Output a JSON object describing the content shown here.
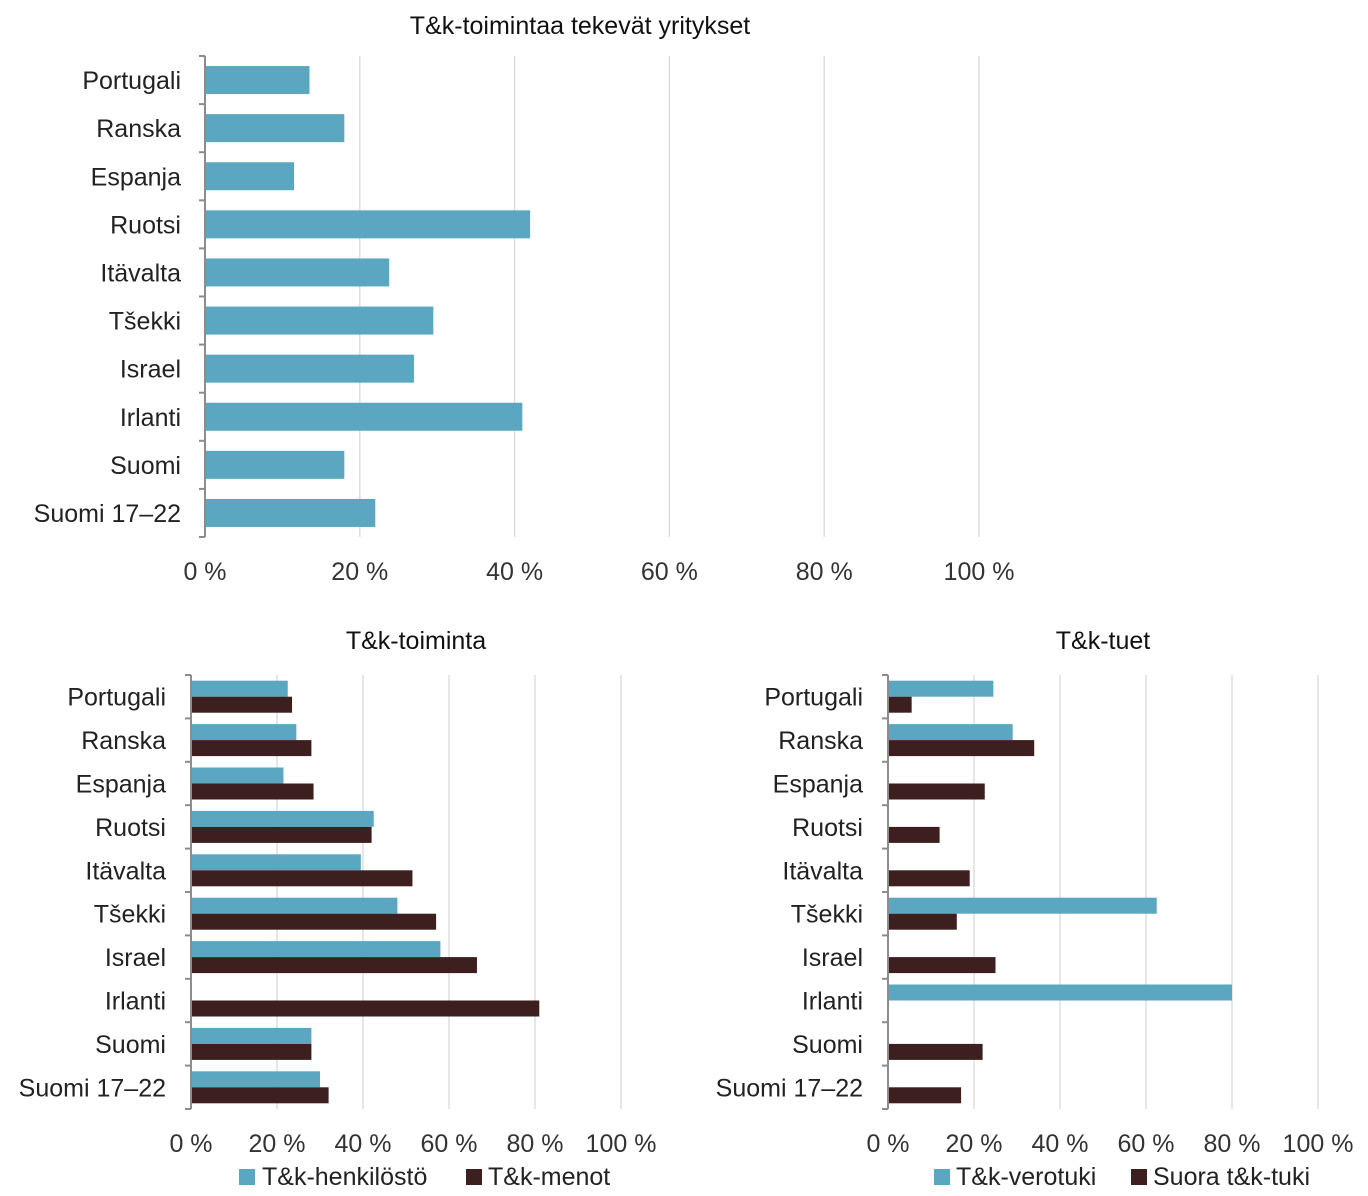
{
  "chart_data": [
    {
      "type": "bar",
      "orientation": "horizontal",
      "title": "T&k-toimintaa tekevät yritykset",
      "categories": [
        "Portugali",
        "Ranska",
        "Espanja",
        "Ruotsi",
        "Itävalta",
        "Tšekki",
        "Israel",
        "Irlanti",
        "Suomi",
        "Suomi 17–22"
      ],
      "series": [
        {
          "values": [
            13.5,
            18,
            11.5,
            42,
            23.8,
            29.5,
            27,
            41,
            18,
            22
          ],
          "color": "#5ba7c2"
        }
      ],
      "xlim": [
        0,
        100
      ],
      "x_ticks": [
        "0 %",
        "20 %",
        "40 %",
        "60 %",
        "80 %",
        "100 %"
      ],
      "grid": true,
      "legend": "none"
    },
    {
      "type": "bar",
      "orientation": "horizontal",
      "title": "T&k-toiminta",
      "categories": [
        "Portugali",
        "Ranska",
        "Espanja",
        "Ruotsi",
        "Itävalta",
        "Tšekki",
        "Israel",
        "Irlanti",
        "Suomi",
        "Suomi 17–22"
      ],
      "series": [
        {
          "name": "T&k-henkilöstö",
          "values": [
            22.5,
            24.5,
            21.5,
            42.5,
            39.5,
            48,
            58,
            null,
            28,
            30
          ],
          "color": "#5ba7c2"
        },
        {
          "name": "T&k-menot",
          "values": [
            23.5,
            28,
            28.5,
            42,
            51.5,
            57,
            66.5,
            81,
            28,
            32
          ],
          "color": "#3d1f1f"
        }
      ],
      "xlim": [
        0,
        100
      ],
      "x_ticks": [
        "0 %",
        "20 %",
        "40 %",
        "60 %",
        "80 %",
        "100 %"
      ],
      "grid": true,
      "legend": "bottom"
    },
    {
      "type": "bar",
      "orientation": "horizontal",
      "title": "T&k-tuet",
      "categories": [
        "Portugali",
        "Ranska",
        "Espanja",
        "Ruotsi",
        "Itävalta",
        "Tšekki",
        "Israel",
        "Irlanti",
        "Suomi",
        "Suomi 17–22"
      ],
      "series": [
        {
          "name": "T&k-verotuki",
          "values": [
            24.5,
            29,
            null,
            null,
            null,
            62.5,
            null,
            80,
            null,
            null
          ],
          "color": "#5ba7c2"
        },
        {
          "name": "Suora t&k-tuki",
          "values": [
            5.5,
            34,
            22.5,
            12,
            19,
            16,
            25,
            null,
            22,
            17
          ],
          "color": "#3d1f1f"
        }
      ],
      "xlim": [
        0,
        100
      ],
      "x_ticks": [
        "0 %",
        "20 %",
        "40 %",
        "60 %",
        "80 %",
        "100 %"
      ],
      "grid": true,
      "legend": "bottom"
    }
  ]
}
